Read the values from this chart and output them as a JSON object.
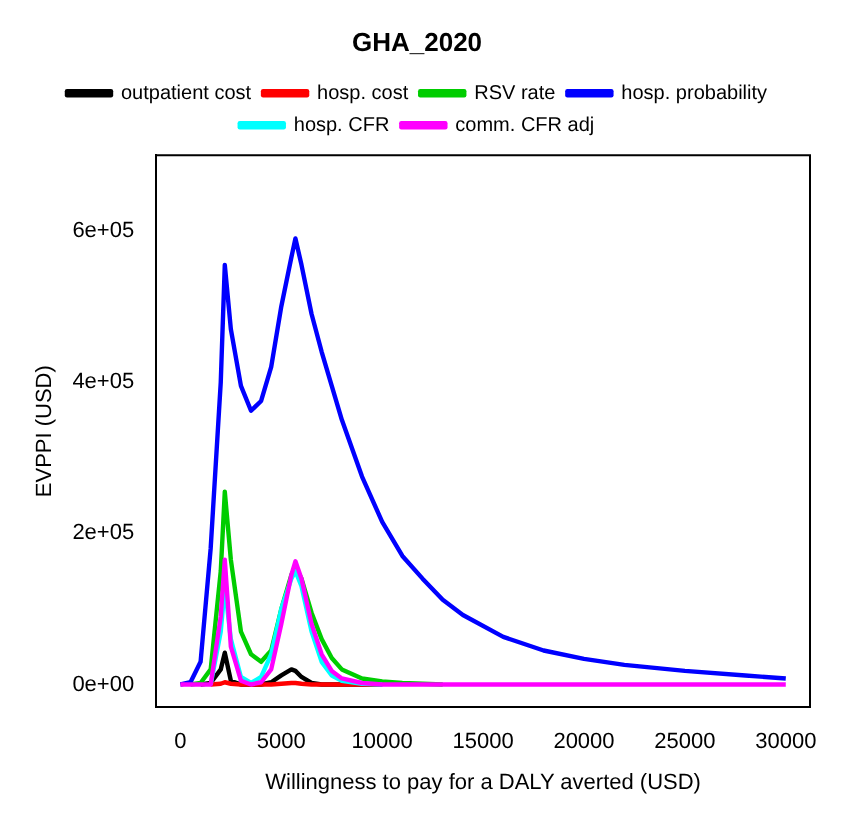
{
  "chart_data": {
    "type": "line",
    "title": "GHA_2020",
    "xlabel": "Willingness to pay for a DALY averted (USD)",
    "ylabel": "EVPPI (USD)",
    "x": [
      0,
      500,
      1000,
      1500,
      2000,
      2200,
      2500,
      3000,
      3500,
      4000,
      4500,
      5000,
      5500,
      5700,
      6000,
      6500,
      7000,
      7500,
      8000,
      9000,
      10000,
      11000,
      12000,
      13000,
      14000,
      16000,
      18000,
      20000,
      22000,
      25000,
      28000,
      30000
    ],
    "series": [
      {
        "name": "outpatient cost",
        "color": "#000000",
        "values": [
          null,
          null,
          0,
          2000,
          20000,
          42000,
          5000,
          0,
          0,
          0,
          3000,
          12000,
          20000,
          18000,
          10000,
          2000,
          0,
          0,
          0,
          0,
          0,
          null,
          null,
          null,
          null,
          null,
          null,
          null,
          null,
          null,
          null,
          null
        ]
      },
      {
        "name": "hosp. cost",
        "color": "#ff0000",
        "values": [
          null,
          null,
          null,
          0,
          1000,
          3000,
          1000,
          0,
          0,
          0,
          0,
          1000,
          2000,
          2000,
          1000,
          0,
          0,
          0,
          0,
          0,
          0,
          null,
          null,
          null,
          null,
          null,
          null,
          null,
          null,
          null,
          null,
          null
        ]
      },
      {
        "name": "RSV rate",
        "color": "#00cd00",
        "values": [
          null,
          0,
          2000,
          20000,
          150000,
          255000,
          165000,
          70000,
          40000,
          30000,
          45000,
          100000,
          145000,
          155000,
          140000,
          95000,
          60000,
          35000,
          20000,
          8000,
          4000,
          2000,
          1000,
          0,
          null,
          null,
          null,
          null,
          null,
          null,
          null,
          null
        ]
      },
      {
        "name": "hosp. probability",
        "color": "#0000ff",
        "values": [
          0,
          3000,
          30000,
          180000,
          400000,
          555000,
          470000,
          395000,
          362000,
          375000,
          420000,
          500000,
          565000,
          590000,
          555000,
          490000,
          440000,
          395000,
          350000,
          275000,
          215000,
          170000,
          140000,
          112000,
          92000,
          63000,
          45000,
          34000,
          26000,
          18000,
          12000,
          8000
        ]
      },
      {
        "name": "hosp. CFR",
        "color": "#00ffff",
        "values": [
          null,
          null,
          null,
          0,
          70000,
          130000,
          60000,
          10000,
          2000,
          10000,
          40000,
          100000,
          140000,
          150000,
          130000,
          70000,
          30000,
          12000,
          5000,
          1000,
          0,
          null,
          null,
          null,
          null,
          null,
          null,
          null,
          null,
          null,
          null,
          null
        ]
      },
      {
        "name": "comm. CFR adj",
        "color": "#ff00ff",
        "values": [
          0,
          0,
          0,
          0,
          90000,
          165000,
          50000,
          5000,
          0,
          3000,
          20000,
          80000,
          145000,
          163000,
          140000,
          80000,
          40000,
          18000,
          8000,
          2000,
          0,
          0,
          0,
          0,
          0,
          0,
          0,
          0,
          0,
          0,
          0,
          0
        ]
      }
    ],
    "xlim": [
      -1200,
      31200
    ],
    "xticks": [
      0,
      5000,
      10000,
      15000,
      20000,
      25000,
      30000
    ],
    "ylim": [
      -30000,
      700000
    ],
    "yticks": [
      {
        "value": 0,
        "label": "0e+00"
      },
      {
        "value": 200000,
        "label": "2e+05"
      },
      {
        "value": 400000,
        "label": "4e+05"
      },
      {
        "value": 600000,
        "label": "6e+05"
      }
    ],
    "legend": "top",
    "grid": false,
    "marker": "none",
    "line_style": "solid"
  }
}
